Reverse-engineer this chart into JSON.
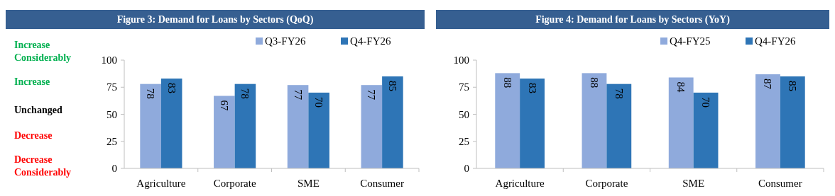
{
  "chart_data": [
    {
      "type": "bar",
      "title": "Figure 3: Demand for Loans by Sectors (QoQ)",
      "categories": [
        "Agriculture",
        "Corporate",
        "SME",
        "Consumer"
      ],
      "series": [
        {
          "name": "Q3-FY26",
          "color": "#8faadc",
          "values": [
            78,
            67,
            77,
            77
          ]
        },
        {
          "name": "Q4-FY26",
          "color": "#2e75b6",
          "values": [
            83,
            78,
            70,
            85
          ]
        }
      ],
      "ylim": [
        0,
        100
      ],
      "yticks": [
        0,
        25,
        50,
        75,
        100
      ],
      "legend": "top right",
      "data_labels": true,
      "grid": false,
      "annotations": [
        "Increase Considerably",
        "Increase",
        "Unchanged",
        "Decrease",
        "Decrease Considerably"
      ]
    },
    {
      "type": "bar",
      "title": "Figure 4: Demand for Loans by Sectors (YoY)",
      "categories": [
        "Agriculture",
        "Corporate",
        "SME",
        "Consumer"
      ],
      "series": [
        {
          "name": "Q4-FY25",
          "color": "#8faadc",
          "values": [
            88,
            88,
            84,
            87
          ]
        },
        {
          "name": "Q4-FY26",
          "color": "#2e75b6",
          "values": [
            83,
            78,
            70,
            85
          ]
        }
      ],
      "ylim": [
        0,
        100
      ],
      "yticks": [
        0,
        25,
        50,
        75,
        100
      ],
      "legend": "top right",
      "data_labels": true,
      "grid": false
    }
  ]
}
